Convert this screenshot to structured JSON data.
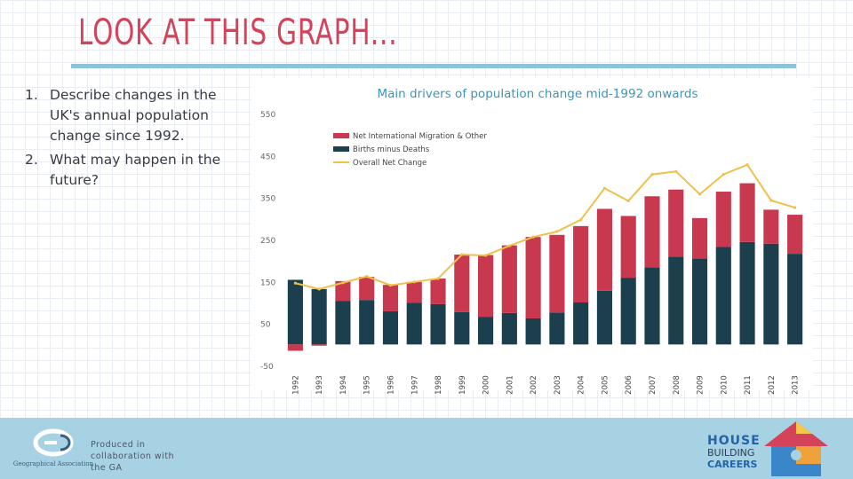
{
  "slide": {
    "title": "Look at this graph...",
    "questions": [
      {
        "number": "1.",
        "text": "Describe changes in the UK's annual population change since 1992."
      },
      {
        "number": "2.",
        "text": "What may happen in the future?"
      }
    ]
  },
  "footer": {
    "produced_text": "Produced in collaboration with the GA",
    "ga_logo_label": "Geographical Association",
    "hbc_line1": "HOUSE",
    "hbc_line2": "BUILDING",
    "hbc_line3": "CAREERS"
  },
  "colors": {
    "migration": "#c8394f",
    "births": "#1c3f4e",
    "overall": "#f0c04a",
    "title": "#d4435a",
    "rule": "#8cc3d8",
    "footer": "#a6d2e3"
  },
  "chart_data": {
    "type": "bar",
    "stacked": true,
    "title": "Main drivers of population change mid-1992 onwards",
    "categories": [
      "1992",
      "1993",
      "1994",
      "1995",
      "1996",
      "1997",
      "1998",
      "1999",
      "2000",
      "2001",
      "2002",
      "2003",
      "2004",
      "2005",
      "2006",
      "2007",
      "2008",
      "2009",
      "2010",
      "2011",
      "2012",
      "2013"
    ],
    "series": [
      {
        "name": "Net International Migration & Other",
        "kind": "bar",
        "values": [
          -15,
          -3,
          47,
          55,
          63,
          50,
          61,
          137,
          147,
          161,
          194,
          185,
          182,
          195,
          147,
          169,
          160,
          96,
          132,
          140,
          81,
          93
        ]
      },
      {
        "name": "Births minus Deaths",
        "kind": "bar",
        "values": [
          154,
          132,
          104,
          106,
          79,
          99,
          96,
          77,
          66,
          75,
          62,
          76,
          100,
          128,
          159,
          184,
          209,
          205,
          232,
          244,
          240,
          216
        ]
      },
      {
        "name": "Overall Net Change",
        "kind": "line",
        "values": [
          146,
          132,
          147,
          162,
          141,
          149,
          157,
          214,
          212,
          235,
          256,
          269,
          297,
          372,
          342,
          405,
          412,
          358,
          405,
          428,
          343,
          326
        ]
      }
    ],
    "y_ticks": [
      "550",
      "450",
      "350",
      "250",
      "150",
      "50",
      "-50"
    ],
    "ylim": [
      -50,
      550
    ],
    "grid": false,
    "legend_position": "top-left"
  }
}
